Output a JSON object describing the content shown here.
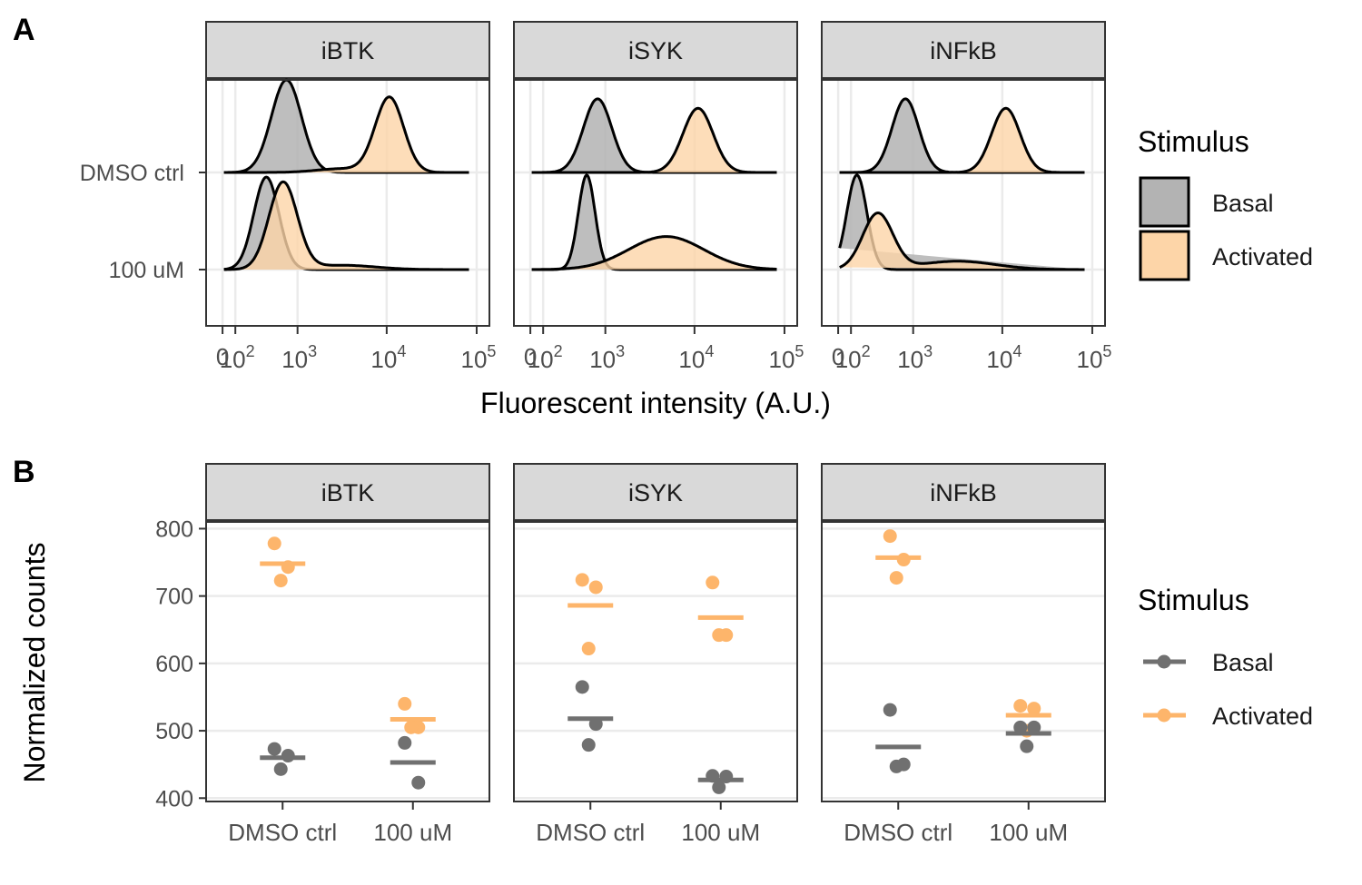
{
  "panel_labels": [
    "A",
    "B"
  ],
  "chart_data": [
    {
      "type": "ridgeline-density",
      "panel": "A",
      "facets": [
        "iBTK",
        "iSYK",
        "iNFkB"
      ],
      "rows": [
        "DMSO ctrl",
        "100 uM"
      ],
      "xlabel": "Fluorescent intensity (A.U.)",
      "x_scale": "biexponential",
      "x_ticks": [
        {
          "value": 0,
          "base": "0",
          "exp": ""
        },
        {
          "value": 100,
          "base": "10",
          "exp": "2"
        },
        {
          "value": 1000,
          "base": "10",
          "exp": "3"
        },
        {
          "value": 10000,
          "base": "10",
          "exp": "4"
        },
        {
          "value": 100000,
          "base": "10",
          "exp": "5"
        }
      ],
      "x_range": [
        0,
        100000
      ],
      "legend_title": "Stimulus",
      "legend_entries": [
        "Basal",
        "Activated"
      ],
      "colors": {
        "Basal": "#b3b3b3",
        "Activated": "#fdd5a8"
      },
      "series": [
        {
          "facet": "iBTK",
          "row": "DMSO ctrl",
          "stimulus": "Basal",
          "components": [
            {
              "log10_center": 2.74,
              "log10_sd": 0.18,
              "weight": 1
            }
          ],
          "peak_height": 0.98
        },
        {
          "facet": "iBTK",
          "row": "DMSO ctrl",
          "stimulus": "Activated",
          "components": [
            {
              "log10_center": 3.97,
              "log10_sd": 0.17,
              "weight": 1
            },
            {
              "log10_center": 3.4,
              "log10_sd": 0.3,
              "weight": 0.05
            }
          ],
          "peak_height": 0.8
        },
        {
          "facet": "iBTK",
          "row": "100 uM",
          "stimulus": "Basal",
          "components": [
            {
              "log10_center": 2.5,
              "log10_sd": 0.15,
              "weight": 1
            }
          ],
          "peak_height": 0.98
        },
        {
          "facet": "iBTK",
          "row": "100 uM",
          "stimulus": "Activated",
          "components": [
            {
              "log10_center": 2.7,
              "log10_sd": 0.17,
              "weight": 1
            },
            {
              "log10_center": 3.4,
              "log10_sd": 0.4,
              "weight": 0.05
            }
          ],
          "peak_height": 0.93
        },
        {
          "facet": "iSYK",
          "row": "DMSO ctrl",
          "stimulus": "Basal",
          "components": [
            {
              "log10_center": 2.78,
              "log10_sd": 0.17,
              "weight": 1
            }
          ],
          "peak_height": 0.78
        },
        {
          "facet": "iSYK",
          "row": "DMSO ctrl",
          "stimulus": "Activated",
          "components": [
            {
              "log10_center": 3.98,
              "log10_sd": 0.18,
              "weight": 1
            }
          ],
          "peak_height": 0.68
        },
        {
          "facet": "iSYK",
          "row": "100 uM",
          "stimulus": "Basal",
          "components": [
            {
              "log10_center": 2.65,
              "log10_sd": 0.1,
              "weight": 1
            }
          ],
          "peak_height": 1.0
        },
        {
          "facet": "iSYK",
          "row": "100 uM",
          "stimulus": "Activated",
          "components": [
            {
              "log10_center": 3.6,
              "log10_sd": 0.45,
              "weight": 1
            }
          ],
          "peak_height": 0.35
        },
        {
          "facet": "iNFkB",
          "row": "DMSO ctrl",
          "stimulus": "Basal",
          "components": [
            {
              "log10_center": 2.78,
              "log10_sd": 0.16,
              "weight": 1
            }
          ],
          "peak_height": 0.78
        },
        {
          "facet": "iNFkB",
          "row": "DMSO ctrl",
          "stimulus": "Activated",
          "components": [
            {
              "log10_center": 3.98,
              "log10_sd": 0.17,
              "weight": 1
            }
          ],
          "peak_height": 0.68
        },
        {
          "facet": "iNFkB",
          "row": "100 uM",
          "stimulus": "Basal",
          "components": [
            {
              "log10_center": 2.2,
              "log10_sd": 0.12,
              "weight": 1
            }
          ],
          "peak_height": 1.0
        },
        {
          "facet": "iNFkB",
          "row": "100 uM",
          "stimulus": "Activated",
          "components": [
            {
              "log10_center": 2.45,
              "log10_sd": 0.18,
              "weight": 1
            },
            {
              "log10_center": 3.4,
              "log10_sd": 0.45,
              "weight": 0.15
            }
          ],
          "peak_height": 0.6
        }
      ]
    },
    {
      "type": "scatter",
      "panel": "B",
      "facets": [
        "iBTK",
        "iSYK",
        "iNFkB"
      ],
      "categories": [
        "DMSO ctrl",
        "100 uM"
      ],
      "ylabel": "Normalized counts",
      "ylim": [
        395,
        810
      ],
      "y_ticks": [
        400,
        500,
        600,
        700,
        800
      ],
      "legend_title": "Stimulus",
      "legend_entries": [
        "Basal",
        "Activated"
      ],
      "colors": {
        "Basal": "#707070",
        "Activated": "#fdb56b"
      },
      "grid": true,
      "groups": [
        {
          "facet": "iBTK",
          "category": "DMSO ctrl",
          "stimulus": "Activated",
          "points": [
            778,
            743,
            723
          ],
          "mean": 748
        },
        {
          "facet": "iBTK",
          "category": "DMSO ctrl",
          "stimulus": "Basal",
          "points": [
            473,
            463,
            443
          ],
          "mean": 460
        },
        {
          "facet": "iBTK",
          "category": "100 uM",
          "stimulus": "Activated",
          "points": [
            540,
            505,
            505
          ],
          "mean": 517
        },
        {
          "facet": "iBTK",
          "category": "100 uM",
          "stimulus": "Basal",
          "points": [
            482,
            423
          ],
          "mean": 453
        },
        {
          "facet": "iSYK",
          "category": "DMSO ctrl",
          "stimulus": "Activated",
          "points": [
            724,
            713,
            622
          ],
          "mean": 686
        },
        {
          "facet": "iSYK",
          "category": "DMSO ctrl",
          "stimulus": "Basal",
          "points": [
            565,
            510,
            479
          ],
          "mean": 518
        },
        {
          "facet": "iSYK",
          "category": "100 uM",
          "stimulus": "Activated",
          "points": [
            720,
            642,
            642
          ],
          "mean": 668
        },
        {
          "facet": "iSYK",
          "category": "100 uM",
          "stimulus": "Basal",
          "points": [
            433,
            432,
            416
          ],
          "mean": 427
        },
        {
          "facet": "iNFkB",
          "category": "DMSO ctrl",
          "stimulus": "Activated",
          "points": [
            789,
            754,
            727
          ],
          "mean": 757
        },
        {
          "facet": "iNFkB",
          "category": "DMSO ctrl",
          "stimulus": "Basal",
          "points": [
            531,
            450,
            447
          ],
          "mean": 476
        },
        {
          "facet": "iNFkB",
          "category": "100 uM",
          "stimulus": "Activated",
          "points": [
            537,
            533,
            500
          ],
          "mean": 523
        },
        {
          "facet": "iNFkB",
          "category": "100 uM",
          "stimulus": "Basal",
          "points": [
            505,
            505,
            477
          ],
          "mean": 496
        }
      ]
    }
  ]
}
